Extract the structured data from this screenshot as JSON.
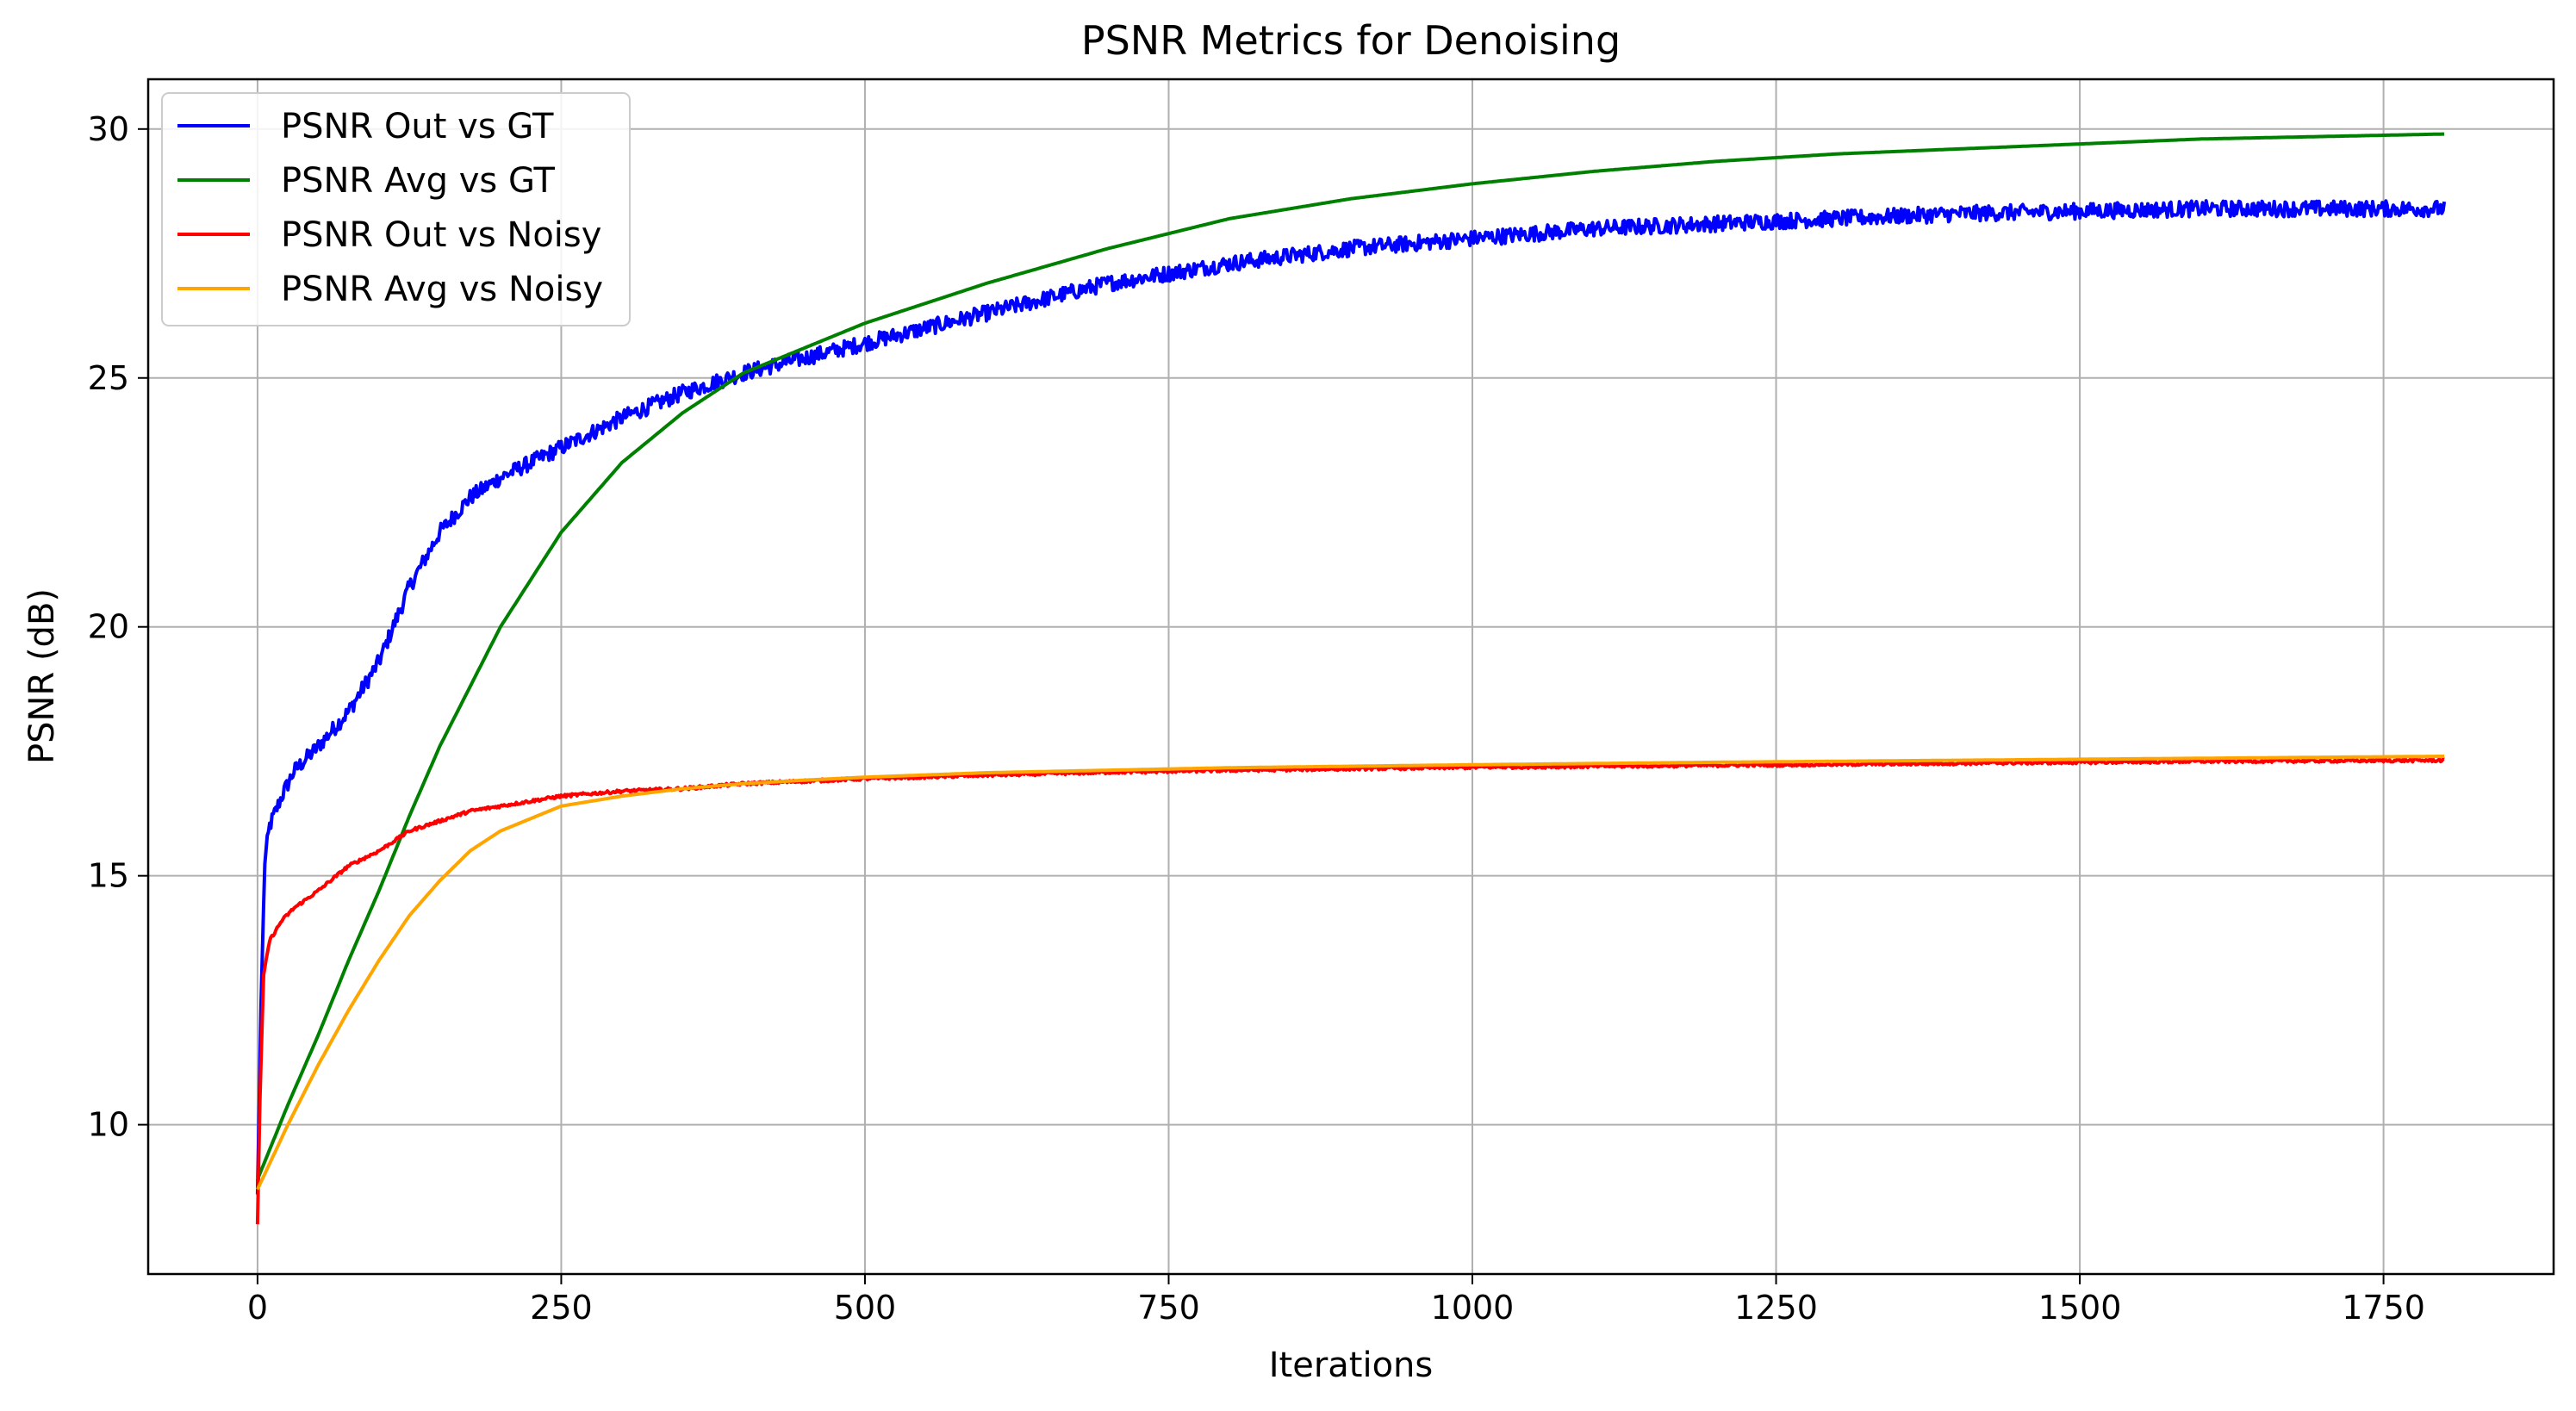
{
  "chart_data": {
    "type": "line",
    "title": "PSNR Metrics for Denoising",
    "xlabel": "Iterations",
    "ylabel": "PSNR (dB)",
    "xlim": [
      -90,
      1890
    ],
    "ylim": [
      7,
      31
    ],
    "xticks": [
      0,
      250,
      500,
      750,
      1000,
      1250,
      1500,
      1750
    ],
    "yticks": [
      10,
      15,
      20,
      25,
      30
    ],
    "grid": true,
    "legend_position": "upper-left",
    "series": [
      {
        "name": "PSNR Out vs GT",
        "color": "#0000ff",
        "noise": 0.16,
        "x": [
          0,
          3,
          6,
          10,
          20,
          30,
          50,
          75,
          100,
          125,
          150,
          175,
          200,
          250,
          300,
          350,
          400,
          450,
          500,
          600,
          700,
          800,
          900,
          1000,
          1100,
          1200,
          1300,
          1400,
          1500,
          1600,
          1700,
          1800
        ],
        "y": [
          8.6,
          12.5,
          15.3,
          16.0,
          16.6,
          17.1,
          17.6,
          18.3,
          19.3,
          20.8,
          21.9,
          22.6,
          23.0,
          23.6,
          24.2,
          24.7,
          25.1,
          25.4,
          25.7,
          26.3,
          26.9,
          27.3,
          27.6,
          27.8,
          28.0,
          28.1,
          28.2,
          28.3,
          28.35,
          28.4,
          28.4,
          28.4
        ]
      },
      {
        "name": "PSNR Avg vs GT",
        "color": "#008000",
        "noise": 0,
        "x": [
          0,
          25,
          50,
          75,
          100,
          125,
          150,
          175,
          200,
          250,
          300,
          350,
          400,
          450,
          500,
          550,
          600,
          700,
          800,
          900,
          1000,
          1100,
          1200,
          1300,
          1400,
          1500,
          1600,
          1700,
          1800
        ],
        "y": [
          8.9,
          10.4,
          11.8,
          13.3,
          14.7,
          16.2,
          17.6,
          18.8,
          20.0,
          21.9,
          23.3,
          24.3,
          25.1,
          25.6,
          26.1,
          26.5,
          26.9,
          27.6,
          28.2,
          28.6,
          28.9,
          29.15,
          29.35,
          29.5,
          29.6,
          29.7,
          29.8,
          29.85,
          29.9
        ]
      },
      {
        "name": "PSNR Out vs Noisy",
        "color": "#ff0000",
        "noise": 0.03,
        "x": [
          0,
          2,
          5,
          10,
          20,
          30,
          50,
          75,
          100,
          125,
          150,
          175,
          200,
          250,
          300,
          350,
          400,
          450,
          500,
          600,
          700,
          800,
          900,
          1000,
          1200,
          1400,
          1600,
          1800
        ],
        "y": [
          8.0,
          10.5,
          13.0,
          13.7,
          14.1,
          14.35,
          14.7,
          15.2,
          15.5,
          15.9,
          16.1,
          16.3,
          16.4,
          16.6,
          16.7,
          16.75,
          16.85,
          16.9,
          16.95,
          17.02,
          17.08,
          17.12,
          17.15,
          17.18,
          17.22,
          17.26,
          17.3,
          17.32
        ]
      },
      {
        "name": "PSNR Avg vs Noisy",
        "color": "#ffa500",
        "noise": 0,
        "x": [
          0,
          25,
          50,
          75,
          100,
          125,
          150,
          175,
          200,
          250,
          300,
          350,
          400,
          450,
          500,
          600,
          700,
          800,
          900,
          1000,
          1200,
          1400,
          1600,
          1800
        ],
        "y": [
          8.7,
          10.0,
          11.2,
          12.3,
          13.3,
          14.2,
          14.9,
          15.5,
          15.9,
          16.4,
          16.6,
          16.75,
          16.85,
          16.92,
          16.98,
          17.07,
          17.12,
          17.17,
          17.2,
          17.23,
          17.28,
          17.32,
          17.36,
          17.4
        ]
      }
    ]
  }
}
